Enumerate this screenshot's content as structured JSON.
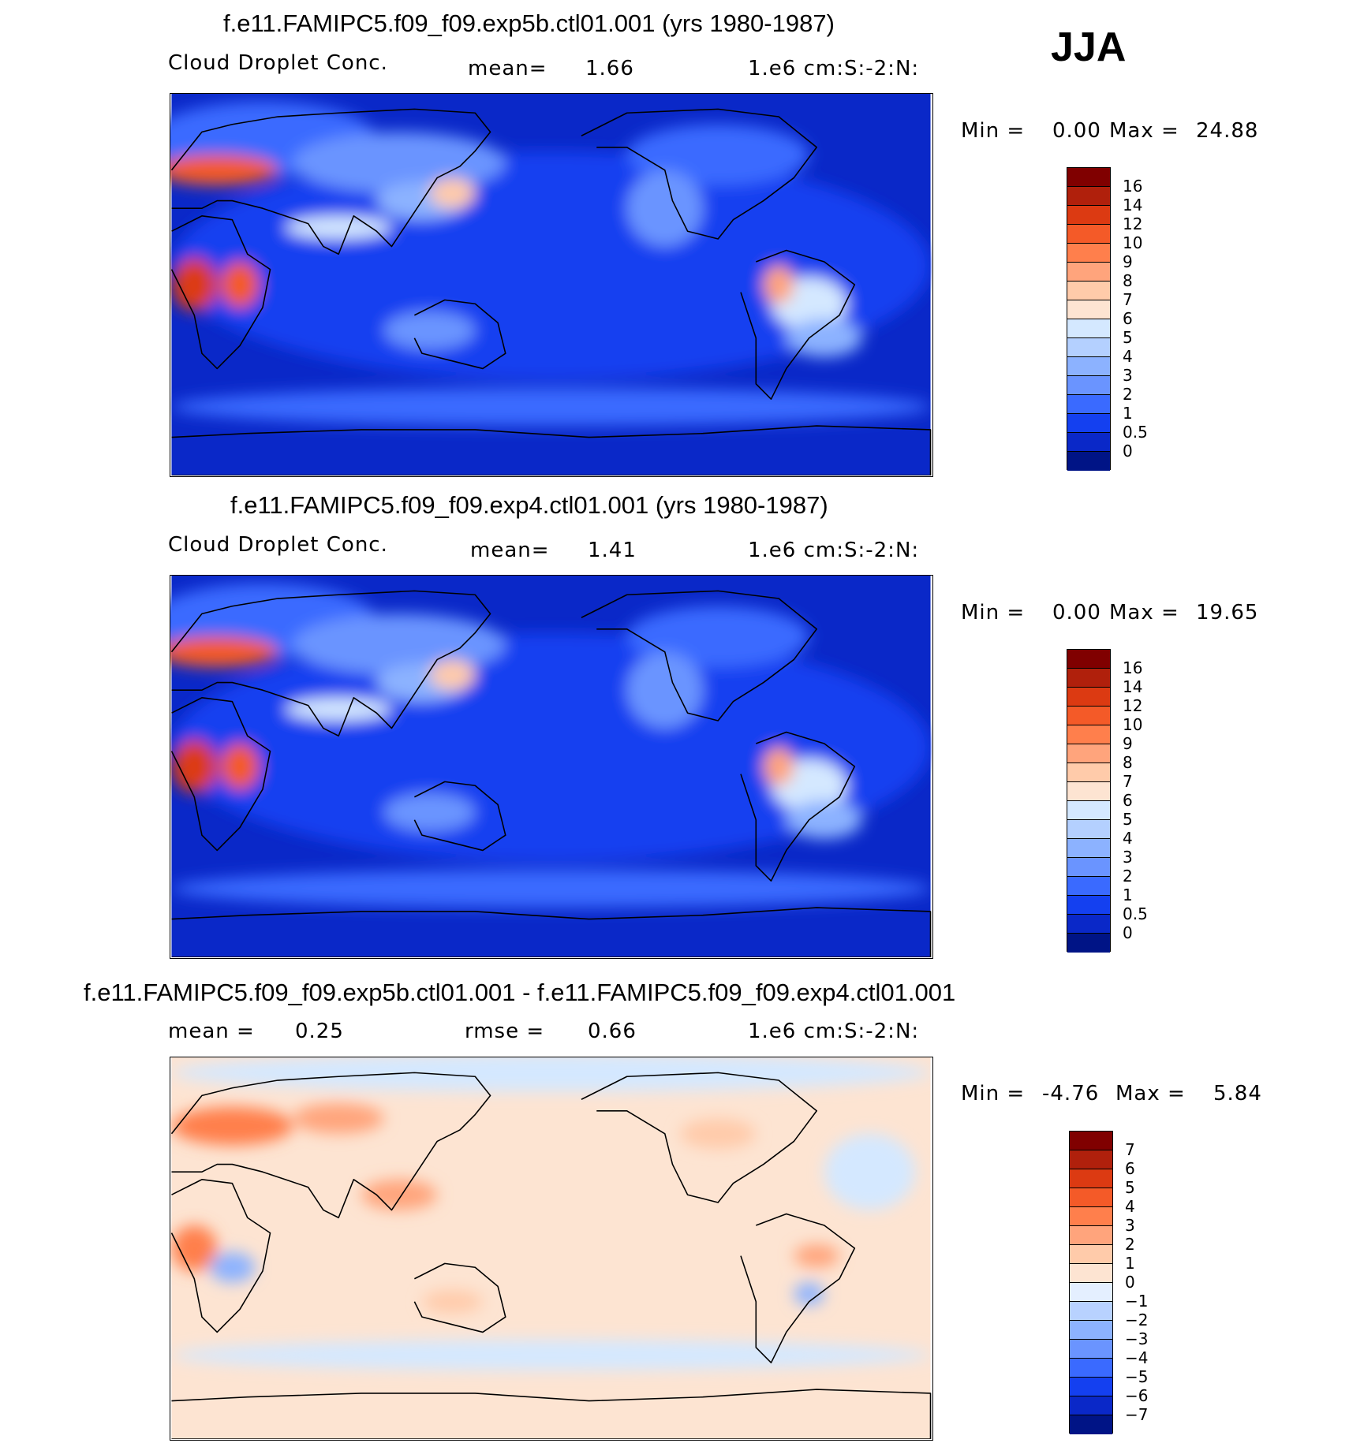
{
  "season": "JJA",
  "panels": [
    {
      "id": "top",
      "title": "f.e11.FAMIPC5.f09_f09.exp5b.ctl01.001 (yrs 1980-1987)",
      "variable": "Cloud Droplet Conc.",
      "stat_label": "mean=",
      "stat_value": "1.66",
      "units": "1.e6 cm:S:-2:N:",
      "min_label": "Min =",
      "min_value": "0.00",
      "max_label": "Max =",
      "max_value": "24.88",
      "colorbar_labels": [
        "16",
        "14",
        "12",
        "10",
        "9",
        "8",
        "7",
        "6",
        "5",
        "4",
        "3",
        "2",
        "1",
        "0.5",
        "0"
      ],
      "colorbar_colors": [
        "#800000",
        "#b0200c",
        "#dc3a12",
        "#f45a28",
        "#ff7f4c",
        "#ffa47c",
        "#ffcbaa",
        "#fde4d2",
        "#d4e8ff",
        "#b4d0ff",
        "#8cb2ff",
        "#6a94ff",
        "#3a6aff",
        "#1440f0",
        "#0a28c8",
        "#001486"
      ]
    },
    {
      "id": "middle",
      "title": "f.e11.FAMIPC5.f09_f09.exp4.ctl01.001 (yrs 1980-1987)",
      "variable": "Cloud Droplet Conc.",
      "stat_label": "mean=",
      "stat_value": "1.41",
      "units": "1.e6 cm:S:-2:N:",
      "min_label": "Min =",
      "min_value": "0.00",
      "max_label": "Max =",
      "max_value": "19.65",
      "colorbar_labels": [
        "16",
        "14",
        "12",
        "10",
        "9",
        "8",
        "7",
        "6",
        "5",
        "4",
        "3",
        "2",
        "1",
        "0.5",
        "0"
      ],
      "colorbar_colors": [
        "#800000",
        "#b0200c",
        "#dc3a12",
        "#f45a28",
        "#ff7f4c",
        "#ffa47c",
        "#ffcbaa",
        "#fde4d2",
        "#d4e8ff",
        "#b4d0ff",
        "#8cb2ff",
        "#6a94ff",
        "#3a6aff",
        "#1440f0",
        "#0a28c8",
        "#001486"
      ]
    },
    {
      "id": "bottom",
      "title": "f.e11.FAMIPC5.f09_f09.exp5b.ctl01.001 - f.e11.FAMIPC5.f09_f09.exp4.ctl01.001",
      "mean_label": "mean =",
      "mean_value": "0.25",
      "rmse_label": "rmse =",
      "rmse_value": "0.66",
      "units": "1.e6 cm:S:-2:N:",
      "min_label": "Min =",
      "min_value": "-4.76",
      "max_label": "Max =",
      "max_value": "5.84",
      "colorbar_labels": [
        "7",
        "6",
        "5",
        "4",
        "3",
        "2",
        "1",
        "0",
        "-1",
        "-2",
        "-3",
        "-4",
        "-5",
        "-6",
        "-7"
      ],
      "colorbar_colors": [
        "#800000",
        "#b0200c",
        "#dc3a12",
        "#f45a28",
        "#ff7f4c",
        "#ffa47c",
        "#ffcbaa",
        "#fde4d2",
        "#e4efff",
        "#b8d2ff",
        "#8cb2ff",
        "#6a94ff",
        "#3a6aff",
        "#1440f0",
        "#0a28c8",
        "#001486"
      ]
    }
  ]
}
